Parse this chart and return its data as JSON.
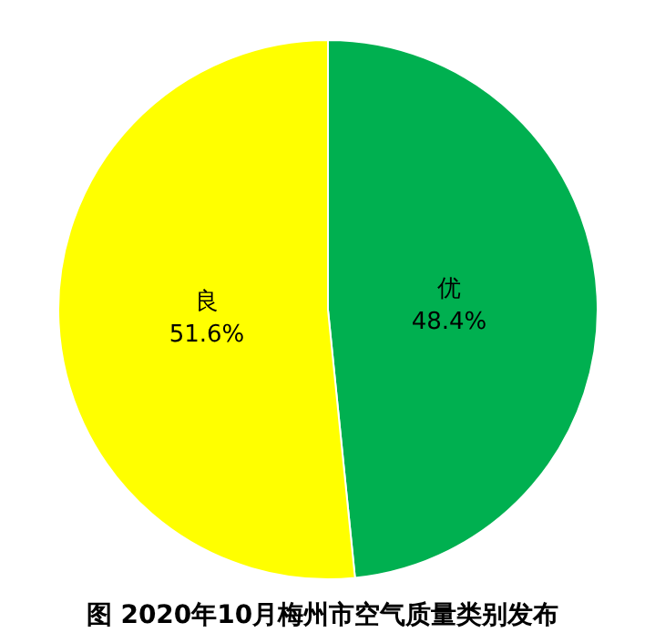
{
  "chart_data": {
    "type": "pie",
    "title": "图  2020年10月梅州市空气质量类别发布",
    "categories": [
      "优",
      "良"
    ],
    "values": [
      48.4,
      51.6
    ],
    "value_labels": [
      "48.4%",
      "51.6%"
    ],
    "colors": [
      "#00b050",
      "#ffff00"
    ]
  }
}
